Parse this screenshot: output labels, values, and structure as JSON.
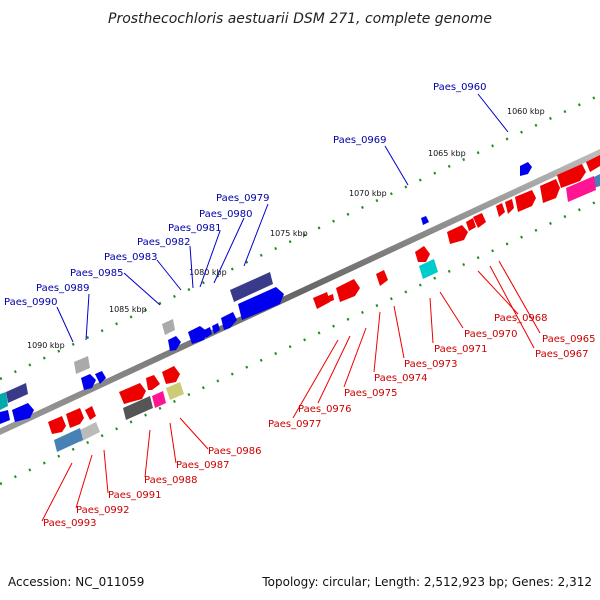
{
  "title": "Prosthecochloris aestuarii DSM 271, complete genome",
  "footer": {
    "accession": "Accession: NC_011059",
    "summary": "Topology: circular; Length: 2,512,923 bp; Genes: 2,312"
  },
  "kbp_marks": [
    "1060 kbp",
    "1065 kbp",
    "1070 kbp",
    "1075 kbp",
    "1080 kbp",
    "1085 kbp",
    "1090 kbp"
  ],
  "forward_labels": [
    "Paes_0960",
    "Paes_0969",
    "Paes_0979",
    "Paes_0980",
    "Paes_0981",
    "Paes_0982",
    "Paes_0983",
    "Paes_0985",
    "Paes_0989",
    "Paes_0990"
  ],
  "reverse_labels": [
    "Paes_0965",
    "Paes_0967",
    "Paes_0968",
    "Paes_0970",
    "Paes_0971",
    "Paes_0973",
    "Paes_0974",
    "Paes_0975",
    "Paes_0976",
    "Paes_0977",
    "Paes_0986",
    "Paes_0987",
    "Paes_0988",
    "Paes_0991",
    "Paes_0992",
    "Paes_0993"
  ],
  "colors": {
    "forward": "#0000ee",
    "reverse": "#ee0000",
    "forward_label": "#0000aa",
    "reverse_label": "#cc0000",
    "backbone": "#777777",
    "ticks": "#228b22"
  }
}
